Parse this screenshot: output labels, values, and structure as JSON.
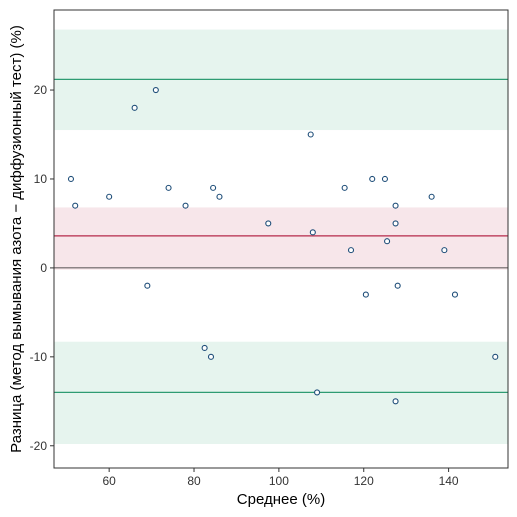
{
  "chart_data": {
    "type": "scatter",
    "subtype": "bland-altman",
    "xlabel": "Среднее (%)",
    "ylabel": "Разница (метод вымывания азота − диффузионный тест) (%)",
    "xlim": [
      47,
      154
    ],
    "ylim": [
      -22.5,
      29
    ],
    "xticks": [
      60,
      80,
      100,
      120,
      140
    ],
    "yticks": [
      -20,
      -10,
      0,
      10,
      20
    ],
    "zero_line": 0,
    "mean_difference": 3.6,
    "mean_band": [
      -0.2,
      6.8
    ],
    "upper_limit": 21.2,
    "upper_band": [
      15.5,
      26.8
    ],
    "lower_limit": -14,
    "lower_band": [
      -19.8,
      -8.3
    ],
    "grid": false,
    "legend": "none",
    "colors": {
      "mean_line": "#b5294a",
      "mean_band": "#f7e6ea",
      "limit_line": "#2e9b72",
      "limit_band": "#e6f4ee",
      "point_stroke": "#1f4e79",
      "axis": "#333333"
    },
    "points": [
      {
        "x": 51,
        "y": 10
      },
      {
        "x": 52,
        "y": 7
      },
      {
        "x": 60,
        "y": 8
      },
      {
        "x": 66,
        "y": 18
      },
      {
        "x": 69,
        "y": -2
      },
      {
        "x": 71,
        "y": 20
      },
      {
        "x": 74,
        "y": 9
      },
      {
        "x": 78,
        "y": 7
      },
      {
        "x": 82.5,
        "y": -9
      },
      {
        "x": 84,
        "y": -10
      },
      {
        "x": 84.5,
        "y": 9
      },
      {
        "x": 86,
        "y": 8
      },
      {
        "x": 97.5,
        "y": 5
      },
      {
        "x": 107.5,
        "y": 15
      },
      {
        "x": 108,
        "y": 4
      },
      {
        "x": 109,
        "y": -14
      },
      {
        "x": 115.5,
        "y": 9
      },
      {
        "x": 117,
        "y": 2
      },
      {
        "x": 120.5,
        "y": -3
      },
      {
        "x": 122,
        "y": 10
      },
      {
        "x": 125,
        "y": 10
      },
      {
        "x": 125.5,
        "y": 3
      },
      {
        "x": 127.5,
        "y": 7
      },
      {
        "x": 127.5,
        "y": 5
      },
      {
        "x": 127.5,
        "y": -15
      },
      {
        "x": 128,
        "y": -2
      },
      {
        "x": 136,
        "y": 8
      },
      {
        "x": 139,
        "y": 2
      },
      {
        "x": 141.5,
        "y": -3
      },
      {
        "x": 151,
        "y": -10
      }
    ]
  }
}
